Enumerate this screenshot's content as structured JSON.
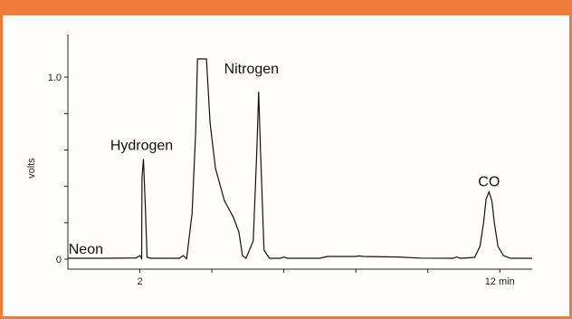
{
  "chart_data": {
    "type": "line",
    "ylabel": "volts",
    "xlim": [
      0,
      12.9
    ],
    "ylim": [
      0,
      1.1
    ],
    "x_tick_labels": [
      {
        "x": 2,
        "label": "2"
      },
      {
        "x": 12,
        "label": "12 min"
      }
    ],
    "x_minor_ticks": [
      4,
      6,
      8,
      10
    ],
    "y_tick_labels": [
      {
        "y": 0,
        "label": "0"
      },
      {
        "y": 1.0,
        "label": "1.0"
      }
    ],
    "y_minor_ticks": [
      0.2,
      0.4,
      0.6,
      0.8
    ],
    "series": [
      {
        "values": [
          [
            0.0,
            0.005
          ],
          [
            1.0,
            0.005
          ],
          [
            1.9,
            0.007
          ],
          [
            2.0,
            0.02
          ],
          [
            2.05,
            0.003
          ],
          [
            2.06,
            0.45
          ],
          [
            2.1,
            0.55
          ],
          [
            2.15,
            0.3
          ],
          [
            2.2,
            0.01
          ],
          [
            2.3,
            0.005
          ],
          [
            3.1,
            0.005
          ],
          [
            3.2,
            0.02
          ],
          [
            3.3,
            0.003
          ],
          [
            3.45,
            0.25
          ],
          [
            3.55,
            0.7
          ],
          [
            3.6,
            1.1
          ],
          [
            3.85,
            1.1
          ],
          [
            3.95,
            0.75
          ],
          [
            4.1,
            0.5
          ],
          [
            4.35,
            0.32
          ],
          [
            4.6,
            0.23
          ],
          [
            4.75,
            0.15
          ],
          [
            4.85,
            0.02
          ],
          [
            4.95,
            0.005
          ],
          [
            5.15,
            0.1
          ],
          [
            5.25,
            0.6
          ],
          [
            5.3,
            0.92
          ],
          [
            5.35,
            0.6
          ],
          [
            5.45,
            0.05
          ],
          [
            5.6,
            0.005
          ],
          [
            5.9,
            0.005
          ],
          [
            6.0,
            0.012
          ],
          [
            6.1,
            0.005
          ],
          [
            7.0,
            0.005
          ],
          [
            7.2,
            0.015
          ],
          [
            8.0,
            0.015
          ],
          [
            8.1,
            0.018
          ],
          [
            8.2,
            0.015
          ],
          [
            9.2,
            0.012
          ],
          [
            9.8,
            0.006
          ],
          [
            10.7,
            0.005
          ],
          [
            10.8,
            0.012
          ],
          [
            10.9,
            0.005
          ],
          [
            11.3,
            0.01
          ],
          [
            11.45,
            0.07
          ],
          [
            11.55,
            0.2
          ],
          [
            11.62,
            0.33
          ],
          [
            11.7,
            0.37
          ],
          [
            11.78,
            0.32
          ],
          [
            11.85,
            0.2
          ],
          [
            11.95,
            0.07
          ],
          [
            12.1,
            0.02
          ],
          [
            12.3,
            0.005
          ],
          [
            12.9,
            0.005
          ]
        ]
      }
    ],
    "annotations": [
      {
        "text": "Neon",
        "x": 0.5,
        "y": 0.03
      },
      {
        "text": "Hydrogen",
        "x": 2.05,
        "y": 0.6
      },
      {
        "text": "Nitrogen",
        "x": 5.1,
        "y": 1.02
      },
      {
        "text": "CO",
        "x": 11.7,
        "y": 0.4
      }
    ]
  }
}
